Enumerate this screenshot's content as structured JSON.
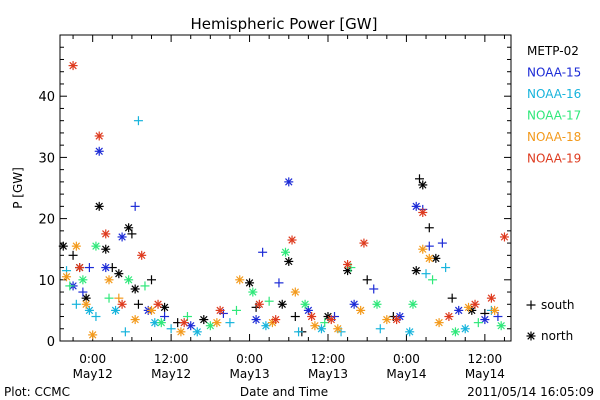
{
  "chart_data": {
    "type": "scatter",
    "title": "Hemispheric Power [GW]",
    "xlabel": "Date and Time",
    "ylabel": "P [GW]",
    "ylim": [
      0,
      50
    ],
    "yticks": [
      0,
      10,
      20,
      30,
      40
    ],
    "xlim": [
      "2011-05-11 19:00",
      "2011-05-14 16:00"
    ],
    "xticks": [
      {
        "x": "2011-05-12 00:00",
        "time": "0:00",
        "date": "May12"
      },
      {
        "x": "2011-05-12 12:00",
        "time": "12:00",
        "date": "May12"
      },
      {
        "x": "2011-05-13 00:00",
        "time": "0:00",
        "date": "May13"
      },
      {
        "x": "2011-05-13 12:00",
        "time": "12:00",
        "date": "May13"
      },
      {
        "x": "2011-05-14 00:00",
        "time": "0:00",
        "date": "May14"
      },
      {
        "x": "2011-05-14 12:00",
        "time": "12:00",
        "date": "May14"
      }
    ],
    "grid": false,
    "legend_position": "right",
    "marker_legend": [
      {
        "marker": "+",
        "label": "south"
      },
      {
        "marker": "*",
        "label": "north"
      }
    ],
    "series": [
      {
        "name": "METP-02",
        "color": "#000000",
        "points": [
          {
            "x": "2011-05-11 19:30",
            "y": 15.5,
            "m": "*"
          },
          {
            "x": "2011-05-11 21:00",
            "y": 14,
            "m": "+"
          },
          {
            "x": "2011-05-11 22:00",
            "y": 12,
            "m": "*"
          },
          {
            "x": "2011-05-11 23:00",
            "y": 7,
            "m": "*"
          },
          {
            "x": "2011-05-12 01:00",
            "y": 22,
            "m": "*"
          },
          {
            "x": "2011-05-12 02:00",
            "y": 15,
            "m": "*"
          },
          {
            "x": "2011-05-12 03:00",
            "y": 12,
            "m": "+"
          },
          {
            "x": "2011-05-12 04:00",
            "y": 11,
            "m": "*"
          },
          {
            "x": "2011-05-12 05:30",
            "y": 18.5,
            "m": "*"
          },
          {
            "x": "2011-05-12 06:00",
            "y": 17.5,
            "m": "+"
          },
          {
            "x": "2011-05-12 06:30",
            "y": 8.5,
            "m": "*"
          },
          {
            "x": "2011-05-12 07:00",
            "y": 6,
            "m": "+"
          },
          {
            "x": "2011-05-12 09:00",
            "y": 10,
            "m": "+"
          },
          {
            "x": "2011-05-12 11:00",
            "y": 5.5,
            "m": "*"
          },
          {
            "x": "2011-05-12 13:00",
            "y": 3,
            "m": "+"
          },
          {
            "x": "2011-05-12 17:00",
            "y": 3.5,
            "m": "*"
          },
          {
            "x": "2011-05-13 00:00",
            "y": 9.5,
            "m": "*"
          },
          {
            "x": "2011-05-13 01:00",
            "y": 5.5,
            "m": "+"
          },
          {
            "x": "2011-05-13 05:00",
            "y": 6,
            "m": "*"
          },
          {
            "x": "2011-05-13 06:00",
            "y": 13,
            "m": "*"
          },
          {
            "x": "2011-05-13 07:00",
            "y": 4,
            "m": "+"
          },
          {
            "x": "2011-05-13 08:00",
            "y": 1.5,
            "m": "+"
          },
          {
            "x": "2011-05-13 12:00",
            "y": 4,
            "m": "*"
          },
          {
            "x": "2011-05-13 15:00",
            "y": 11.5,
            "m": "*"
          },
          {
            "x": "2011-05-13 18:00",
            "y": 10,
            "m": "+"
          },
          {
            "x": "2011-05-13 22:00",
            "y": 4,
            "m": "+"
          },
          {
            "x": "2011-05-14 01:30",
            "y": 11.5,
            "m": "*"
          },
          {
            "x": "2011-05-14 02:00",
            "y": 26.5,
            "m": "+"
          },
          {
            "x": "2011-05-14 02:30",
            "y": 25.5,
            "m": "*"
          },
          {
            "x": "2011-05-14 03:30",
            "y": 18.5,
            "m": "+"
          },
          {
            "x": "2011-05-14 04:30",
            "y": 13.5,
            "m": "*"
          },
          {
            "x": "2011-05-14 07:00",
            "y": 7,
            "m": "+"
          },
          {
            "x": "2011-05-14 10:00",
            "y": 5,
            "m": "*"
          },
          {
            "x": "2011-05-14 12:00",
            "y": 4.5,
            "m": "+"
          }
        ]
      },
      {
        "name": "NOAA-15",
        "color": "#1c2bd6",
        "points": [
          {
            "x": "2011-05-11 21:00",
            "y": 9,
            "m": "*"
          },
          {
            "x": "2011-05-11 22:30",
            "y": 8,
            "m": "+"
          },
          {
            "x": "2011-05-11 23:30",
            "y": 12,
            "m": "+"
          },
          {
            "x": "2011-05-12 01:00",
            "y": 31,
            "m": "*"
          },
          {
            "x": "2011-05-12 02:00",
            "y": 12,
            "m": "*"
          },
          {
            "x": "2011-05-12 04:30",
            "y": 17,
            "m": "*"
          },
          {
            "x": "2011-05-12 06:30",
            "y": 22,
            "m": "+"
          },
          {
            "x": "2011-05-12 08:30",
            "y": 5,
            "m": "*"
          },
          {
            "x": "2011-05-12 11:00",
            "y": 4,
            "m": "+"
          },
          {
            "x": "2011-05-12 15:00",
            "y": 2.5,
            "m": "*"
          },
          {
            "x": "2011-05-12 20:00",
            "y": 4.5,
            "m": "+"
          },
          {
            "x": "2011-05-13 01:00",
            "y": 3.5,
            "m": "*"
          },
          {
            "x": "2011-05-13 02:00",
            "y": 14.5,
            "m": "+"
          },
          {
            "x": "2011-05-13 04:30",
            "y": 9.5,
            "m": "+"
          },
          {
            "x": "2011-05-13 06:00",
            "y": 26,
            "m": "*"
          },
          {
            "x": "2011-05-13 09:00",
            "y": 5,
            "m": "*"
          },
          {
            "x": "2011-05-13 13:00",
            "y": 4,
            "m": "+"
          },
          {
            "x": "2011-05-13 16:00",
            "y": 6,
            "m": "*"
          },
          {
            "x": "2011-05-13 19:00",
            "y": 8.5,
            "m": "+"
          },
          {
            "x": "2011-05-13 23:00",
            "y": 4,
            "m": "*"
          },
          {
            "x": "2011-05-14 01:30",
            "y": 22,
            "m": "*"
          },
          {
            "x": "2011-05-14 02:30",
            "y": 21.5,
            "m": "+"
          },
          {
            "x": "2011-05-14 03:30",
            "y": 15.5,
            "m": "+"
          },
          {
            "x": "2011-05-14 05:30",
            "y": 16,
            "m": "+"
          },
          {
            "x": "2011-05-14 08:00",
            "y": 5,
            "m": "*"
          },
          {
            "x": "2011-05-14 12:00",
            "y": 3.5,
            "m": "*"
          },
          {
            "x": "2011-05-14 14:00",
            "y": 4,
            "m": "+"
          }
        ]
      },
      {
        "name": "NOAA-16",
        "color": "#17b4dc",
        "points": [
          {
            "x": "2011-05-11 20:00",
            "y": 11.5,
            "m": "+"
          },
          {
            "x": "2011-05-11 21:30",
            "y": 6,
            "m": "+"
          },
          {
            "x": "2011-05-11 23:30",
            "y": 5,
            "m": "*"
          },
          {
            "x": "2011-05-12 00:30",
            "y": 4,
            "m": "+"
          },
          {
            "x": "2011-05-12 03:30",
            "y": 5,
            "m": "*"
          },
          {
            "x": "2011-05-12 05:00",
            "y": 1.5,
            "m": "+"
          },
          {
            "x": "2011-05-12 07:00",
            "y": 36,
            "m": "+"
          },
          {
            "x": "2011-05-12 09:30",
            "y": 3,
            "m": "*"
          },
          {
            "x": "2011-05-12 12:00",
            "y": 2,
            "m": "+"
          },
          {
            "x": "2011-05-12 16:00",
            "y": 1.5,
            "m": "*"
          },
          {
            "x": "2011-05-12 21:00",
            "y": 3,
            "m": "+"
          },
          {
            "x": "2011-05-13 02:30",
            "y": 2.5,
            "m": "*"
          },
          {
            "x": "2011-05-13 07:30",
            "y": 1.5,
            "m": "+"
          },
          {
            "x": "2011-05-13 11:00",
            "y": 2,
            "m": "*"
          },
          {
            "x": "2011-05-13 14:00",
            "y": 1.5,
            "m": "+"
          },
          {
            "x": "2011-05-13 20:00",
            "y": 2,
            "m": "+"
          },
          {
            "x": "2011-05-14 00:30",
            "y": 1.5,
            "m": "*"
          },
          {
            "x": "2011-05-14 03:00",
            "y": 11,
            "m": "+"
          },
          {
            "x": "2011-05-14 06:00",
            "y": 12,
            "m": "+"
          },
          {
            "x": "2011-05-14 09:00",
            "y": 2,
            "m": "*"
          },
          {
            "x": "2011-05-14 13:00",
            "y": 5,
            "m": "+"
          }
        ]
      },
      {
        "name": "NOAA-17",
        "color": "#2fe87a",
        "points": [
          {
            "x": "2011-05-11 20:30",
            "y": 9,
            "m": "+"
          },
          {
            "x": "2011-05-11 22:30",
            "y": 10,
            "m": "*"
          },
          {
            "x": "2011-05-12 00:30",
            "y": 15.5,
            "m": "*"
          },
          {
            "x": "2011-05-12 02:30",
            "y": 7,
            "m": "+"
          },
          {
            "x": "2011-05-12 05:30",
            "y": 10,
            "m": "*"
          },
          {
            "x": "2011-05-12 08:00",
            "y": 9,
            "m": "+"
          },
          {
            "x": "2011-05-12 10:30",
            "y": 3,
            "m": "*"
          },
          {
            "x": "2011-05-12 14:30",
            "y": 4,
            "m": "+"
          },
          {
            "x": "2011-05-12 18:00",
            "y": 2.5,
            "m": "*"
          },
          {
            "x": "2011-05-12 22:00",
            "y": 5,
            "m": "+"
          },
          {
            "x": "2011-05-13 00:30",
            "y": 8,
            "m": "*"
          },
          {
            "x": "2011-05-13 03:00",
            "y": 6.5,
            "m": "+"
          },
          {
            "x": "2011-05-13 05:30",
            "y": 14.5,
            "m": "*"
          },
          {
            "x": "2011-05-13 08:30",
            "y": 6,
            "m": "*"
          },
          {
            "x": "2011-05-13 11:30",
            "y": 3,
            "m": "+"
          },
          {
            "x": "2011-05-13 15:30",
            "y": 12,
            "m": "+"
          },
          {
            "x": "2011-05-13 19:30",
            "y": 6,
            "m": "*"
          },
          {
            "x": "2011-05-14 01:00",
            "y": 6,
            "m": "*"
          },
          {
            "x": "2011-05-14 04:00",
            "y": 10,
            "m": "+"
          },
          {
            "x": "2011-05-14 07:30",
            "y": 1.5,
            "m": "*"
          },
          {
            "x": "2011-05-14 11:00",
            "y": 3,
            "m": "+"
          },
          {
            "x": "2011-05-14 14:30",
            "y": 2.5,
            "m": "*"
          }
        ]
      },
      {
        "name": "NOAA-18",
        "color": "#f39a1c",
        "points": [
          {
            "x": "2011-05-11 20:00",
            "y": 10.5,
            "m": "*"
          },
          {
            "x": "2011-05-11 21:30",
            "y": 15.5,
            "m": "*"
          },
          {
            "x": "2011-05-11 23:00",
            "y": 6,
            "m": "*"
          },
          {
            "x": "2011-05-12 00:00",
            "y": 1,
            "m": "*"
          },
          {
            "x": "2011-05-12 02:30",
            "y": 10,
            "m": "*"
          },
          {
            "x": "2011-05-12 04:00",
            "y": 7,
            "m": "+"
          },
          {
            "x": "2011-05-12 06:30",
            "y": 3.5,
            "m": "*"
          },
          {
            "x": "2011-05-12 09:00",
            "y": 5,
            "m": "*"
          },
          {
            "x": "2011-05-12 13:30",
            "y": 1.5,
            "m": "*"
          },
          {
            "x": "2011-05-12 19:00",
            "y": 3,
            "m": "*"
          },
          {
            "x": "2011-05-12 22:30",
            "y": 10,
            "m": "*"
          },
          {
            "x": "2011-05-13 03:30",
            "y": 3,
            "m": "*"
          },
          {
            "x": "2011-05-13 07:00",
            "y": 8,
            "m": "*"
          },
          {
            "x": "2011-05-13 10:00",
            "y": 2.5,
            "m": "*"
          },
          {
            "x": "2011-05-13 13:30",
            "y": 2,
            "m": "*"
          },
          {
            "x": "2011-05-13 17:00",
            "y": 5,
            "m": "*"
          },
          {
            "x": "2011-05-13 21:00",
            "y": 3.5,
            "m": "*"
          },
          {
            "x": "2011-05-14 02:30",
            "y": 15,
            "m": "*"
          },
          {
            "x": "2011-05-14 03:30",
            "y": 13.5,
            "m": "*"
          },
          {
            "x": "2011-05-14 05:00",
            "y": 3,
            "m": "*"
          },
          {
            "x": "2011-05-14 09:30",
            "y": 5.5,
            "m": "*"
          },
          {
            "x": "2011-05-14 13:30",
            "y": 5,
            "m": "*"
          }
        ]
      },
      {
        "name": "NOAA-19",
        "color": "#de3a1e",
        "points": [
          {
            "x": "2011-05-11 21:00",
            "y": 45,
            "m": "*"
          },
          {
            "x": "2011-05-11 22:00",
            "y": 12,
            "m": "*"
          },
          {
            "x": "2011-05-12 01:00",
            "y": 33.5,
            "m": "*"
          },
          {
            "x": "2011-05-12 02:00",
            "y": 17.5,
            "m": "*"
          },
          {
            "x": "2011-05-12 04:30",
            "y": 6,
            "m": "*"
          },
          {
            "x": "2011-05-12 07:30",
            "y": 14,
            "m": "*"
          },
          {
            "x": "2011-05-12 10:00",
            "y": 6,
            "m": "*"
          },
          {
            "x": "2011-05-12 14:00",
            "y": 3,
            "m": "*"
          },
          {
            "x": "2011-05-12 19:30",
            "y": 5,
            "m": "*"
          },
          {
            "x": "2011-05-13 01:30",
            "y": 6,
            "m": "*"
          },
          {
            "x": "2011-05-13 04:00",
            "y": 3.5,
            "m": "*"
          },
          {
            "x": "2011-05-13 06:30",
            "y": 16.5,
            "m": "*"
          },
          {
            "x": "2011-05-13 09:30",
            "y": 4,
            "m": "*"
          },
          {
            "x": "2011-05-13 12:30",
            "y": 3.5,
            "m": "*"
          },
          {
            "x": "2011-05-13 15:00",
            "y": 12.5,
            "m": "*"
          },
          {
            "x": "2011-05-13 17:30",
            "y": 16,
            "m": "*"
          },
          {
            "x": "2011-05-13 22:30",
            "y": 3.5,
            "m": "*"
          },
          {
            "x": "2011-05-14 02:30",
            "y": 21,
            "m": "*"
          },
          {
            "x": "2011-05-14 06:30",
            "y": 4,
            "m": "*"
          },
          {
            "x": "2011-05-14 10:30",
            "y": 6,
            "m": "*"
          },
          {
            "x": "2011-05-14 13:00",
            "y": 7,
            "m": "*"
          },
          {
            "x": "2011-05-14 15:00",
            "y": 17,
            "m": "*"
          }
        ]
      }
    ]
  },
  "footer": {
    "plot_credit": "Plot: CCMC",
    "timestamp": "2011/05/14 16:05:09"
  }
}
